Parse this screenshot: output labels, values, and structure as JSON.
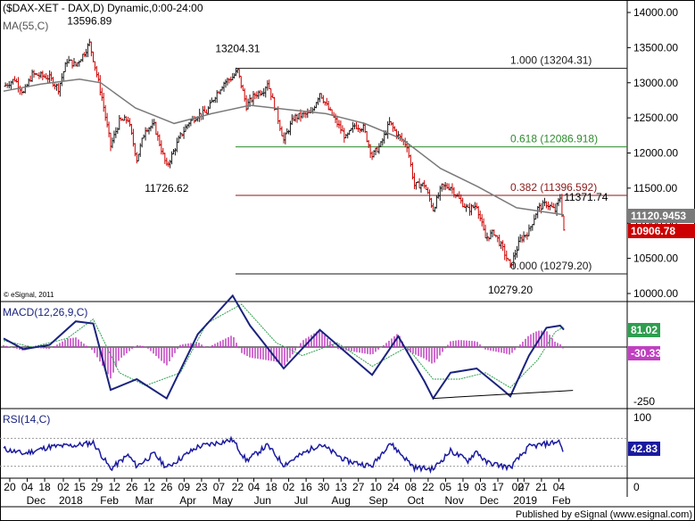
{
  "chart_data": {
    "type": "candlestick",
    "title": "($DAX-XET - DAX,D) Dynamic,0:00-24:00",
    "overlay_label": "MA(55,C)",
    "copyright": "© eSignal, 2011",
    "footer": "Published by eSignal (www.esignal.com)",
    "colors": {
      "up": "#1a1a1a",
      "down": "#cc0000",
      "ma": "#7a7a7a",
      "macd": "#1a237e",
      "signal": "#2e9e4f",
      "hist": "#c040c0",
      "rsi": "#1a1aa0",
      "fib_red": "#8b1a1a",
      "fib_green": "#2e8b2e"
    },
    "price_axis": {
      "min": 10000,
      "max": 14000,
      "ticks": [
        "14000.00",
        "13500.00",
        "13000.00",
        "12500.00",
        "12000.00",
        "11500.00",
        "11000.00",
        "10500.00",
        "10000.00"
      ]
    },
    "price_markers": [
      {
        "label": "11120.9453",
        "value": 11120.95,
        "color": "#7a7a7a"
      },
      {
        "label": "10906.78",
        "value": 10906.78,
        "color": "#cc0000"
      }
    ],
    "fib_levels": [
      {
        "label": "1.000 (13204.31)",
        "value": 13204.31,
        "color": "#1a1a1a"
      },
      {
        "label": "0.618 (12086.918)",
        "value": 12086.918,
        "color": "#2e8b2e"
      },
      {
        "label": "0.382 (11396.592)",
        "value": 11396.592,
        "color": "#8b1a1a"
      },
      {
        "label": "0.000 (10279.20)",
        "value": 10279.2,
        "color": "#1a1a1a"
      }
    ],
    "annotations": [
      {
        "text": "13596.89",
        "date": "2018-01-23",
        "value": 13596.89,
        "place": "above"
      },
      {
        "text": "13204.31",
        "date": "2018-05-22",
        "value": 13204.31,
        "place": "above"
      },
      {
        "text": "11726.62",
        "date": "2018-03-26",
        "value": 11726.62,
        "place": "below"
      },
      {
        "text": "11371.74",
        "date": "2019-02-01",
        "value": 11371.74,
        "place": "right"
      },
      {
        "text": "10279.20",
        "date": "2018-12-27",
        "value": 10279.2,
        "place": "below"
      }
    ],
    "price_series": [
      {
        "date": "2017-11-15",
        "close": 12950
      },
      {
        "date": "2017-11-24",
        "close": 13050
      },
      {
        "date": "2017-12-01",
        "close": 12850
      },
      {
        "date": "2017-12-08",
        "close": 13120
      },
      {
        "date": "2017-12-15",
        "close": 13100
      },
      {
        "date": "2017-12-22",
        "close": 13070
      },
      {
        "date": "2017-12-29",
        "close": 12917
      },
      {
        "date": "2018-01-05",
        "close": 13320
      },
      {
        "date": "2018-01-12",
        "close": 13250
      },
      {
        "date": "2018-01-19",
        "close": 13430
      },
      {
        "date": "2018-01-23",
        "close": 13560
      },
      {
        "date": "2018-01-26",
        "close": 13340
      },
      {
        "date": "2018-02-02",
        "close": 12790
      },
      {
        "date": "2018-02-09",
        "close": 12100
      },
      {
        "date": "2018-02-16",
        "close": 12450
      },
      {
        "date": "2018-02-23",
        "close": 12480
      },
      {
        "date": "2018-03-02",
        "close": 11910
      },
      {
        "date": "2018-03-09",
        "close": 12350
      },
      {
        "date": "2018-03-16",
        "close": 12390
      },
      {
        "date": "2018-03-26",
        "close": 11800
      },
      {
        "date": "2018-04-06",
        "close": 12240
      },
      {
        "date": "2018-04-13",
        "close": 12440
      },
      {
        "date": "2018-04-20",
        "close": 12540
      },
      {
        "date": "2018-04-27",
        "close": 12580
      },
      {
        "date": "2018-05-04",
        "close": 12820
      },
      {
        "date": "2018-05-11",
        "close": 13000
      },
      {
        "date": "2018-05-18",
        "close": 13080
      },
      {
        "date": "2018-05-22",
        "close": 13170
      },
      {
        "date": "2018-05-29",
        "close": 12670
      },
      {
        "date": "2018-06-05",
        "close": 12830
      },
      {
        "date": "2018-06-12",
        "close": 12900
      },
      {
        "date": "2018-06-15",
        "close": 13010
      },
      {
        "date": "2018-06-22",
        "close": 12580
      },
      {
        "date": "2018-06-28",
        "close": 12180
      },
      {
        "date": "2018-07-06",
        "close": 12500
      },
      {
        "date": "2018-07-13",
        "close": 12540
      },
      {
        "date": "2018-07-20",
        "close": 12560
      },
      {
        "date": "2018-07-27",
        "close": 12860
      },
      {
        "date": "2018-08-03",
        "close": 12620
      },
      {
        "date": "2018-08-10",
        "close": 12420
      },
      {
        "date": "2018-08-17",
        "close": 12210
      },
      {
        "date": "2018-08-24",
        "close": 12390
      },
      {
        "date": "2018-08-31",
        "close": 12360
      },
      {
        "date": "2018-09-07",
        "close": 11960
      },
      {
        "date": "2018-09-14",
        "close": 12120
      },
      {
        "date": "2018-09-21",
        "close": 12430
      },
      {
        "date": "2018-09-28",
        "close": 12240
      },
      {
        "date": "2018-10-05",
        "close": 12110
      },
      {
        "date": "2018-10-11",
        "close": 11540
      },
      {
        "date": "2018-10-19",
        "close": 11550
      },
      {
        "date": "2018-10-26",
        "close": 11200
      },
      {
        "date": "2018-11-02",
        "close": 11520
      },
      {
        "date": "2018-11-09",
        "close": 11520
      },
      {
        "date": "2018-11-16",
        "close": 11340
      },
      {
        "date": "2018-11-23",
        "close": 11190
      },
      {
        "date": "2018-11-30",
        "close": 11260
      },
      {
        "date": "2018-12-07",
        "close": 10790
      },
      {
        "date": "2018-12-14",
        "close": 10870
      },
      {
        "date": "2018-12-21",
        "close": 10630
      },
      {
        "date": "2018-12-27",
        "close": 10380
      },
      {
        "date": "2019-01-04",
        "close": 10770
      },
      {
        "date": "2019-01-11",
        "close": 10890
      },
      {
        "date": "2019-01-18",
        "close": 11210
      },
      {
        "date": "2019-01-25",
        "close": 11280
      },
      {
        "date": "2019-02-01",
        "close": 11180
      },
      {
        "date": "2019-02-05",
        "close": 11370
      },
      {
        "date": "2019-02-08",
        "close": 10906.78
      }
    ],
    "ma_series": [
      {
        "date": "2017-11-15",
        "value": 12880
      },
      {
        "date": "2017-12-15",
        "value": 12980
      },
      {
        "date": "2018-01-15",
        "value": 13050
      },
      {
        "date": "2018-02-01",
        "value": 13000
      },
      {
        "date": "2018-03-01",
        "value": 12640
      },
      {
        "date": "2018-04-01",
        "value": 12420
      },
      {
        "date": "2018-05-01",
        "value": 12560
      },
      {
        "date": "2018-06-01",
        "value": 12680
      },
      {
        "date": "2018-07-01",
        "value": 12620
      },
      {
        "date": "2018-08-01",
        "value": 12560
      },
      {
        "date": "2018-09-01",
        "value": 12420
      },
      {
        "date": "2018-10-01",
        "value": 12200
      },
      {
        "date": "2018-11-01",
        "value": 11780
      },
      {
        "date": "2018-12-01",
        "value": 11520
      },
      {
        "date": "2019-01-01",
        "value": 11220
      },
      {
        "date": "2019-02-08",
        "value": 11121
      }
    ],
    "macd": {
      "label": "MACD(12,26,9,C)",
      "ticks": [
        "-250"
      ],
      "markers": [
        {
          "label": "81.02",
          "value": 81.02,
          "color": "#2e9e4f"
        },
        {
          "label": "-30.33",
          "value": -30.33,
          "color": "#c040c0"
        }
      ],
      "macd_series": [
        {
          "date": "2017-11-15",
          "value": 40
        },
        {
          "date": "2017-12-01",
          "value": -10
        },
        {
          "date": "2017-12-22",
          "value": 10
        },
        {
          "date": "2018-01-12",
          "value": 120
        },
        {
          "date": "2018-01-26",
          "value": 110
        },
        {
          "date": "2018-02-09",
          "value": -200
        },
        {
          "date": "2018-03-02",
          "value": -150
        },
        {
          "date": "2018-03-26",
          "value": -240
        },
        {
          "date": "2018-04-20",
          "value": 60
        },
        {
          "date": "2018-05-18",
          "value": 240
        },
        {
          "date": "2018-06-01",
          "value": 100
        },
        {
          "date": "2018-06-28",
          "value": -100
        },
        {
          "date": "2018-07-27",
          "value": 80
        },
        {
          "date": "2018-08-24",
          "value": -60
        },
        {
          "date": "2018-09-07",
          "value": -130
        },
        {
          "date": "2018-09-28",
          "value": 50
        },
        {
          "date": "2018-10-19",
          "value": -160
        },
        {
          "date": "2018-10-26",
          "value": -240
        },
        {
          "date": "2018-11-09",
          "value": -120
        },
        {
          "date": "2018-11-30",
          "value": -100
        },
        {
          "date": "2018-12-21",
          "value": -200
        },
        {
          "date": "2018-12-27",
          "value": -230
        },
        {
          "date": "2019-01-11",
          "value": -40
        },
        {
          "date": "2019-01-25",
          "value": 90
        },
        {
          "date": "2019-02-05",
          "value": 100
        },
        {
          "date": "2019-02-08",
          "value": 81
        }
      ],
      "signal_series": [
        {
          "date": "2017-11-15",
          "value": 30
        },
        {
          "date": "2017-12-08",
          "value": 0
        },
        {
          "date": "2018-01-05",
          "value": 40
        },
        {
          "date": "2018-01-26",
          "value": 130
        },
        {
          "date": "2018-02-16",
          "value": -120
        },
        {
          "date": "2018-03-09",
          "value": -180
        },
        {
          "date": "2018-04-06",
          "value": -120
        },
        {
          "date": "2018-04-27",
          "value": 110
        },
        {
          "date": "2018-05-25",
          "value": 200
        },
        {
          "date": "2018-06-22",
          "value": 20
        },
        {
          "date": "2018-07-13",
          "value": -40
        },
        {
          "date": "2018-08-10",
          "value": 20
        },
        {
          "date": "2018-09-07",
          "value": -90
        },
        {
          "date": "2018-10-05",
          "value": 0
        },
        {
          "date": "2018-10-26",
          "value": -150
        },
        {
          "date": "2018-11-16",
          "value": -150
        },
        {
          "date": "2018-12-07",
          "value": -120
        },
        {
          "date": "2018-12-27",
          "value": -190
        },
        {
          "date": "2019-01-18",
          "value": -60
        },
        {
          "date": "2019-02-01",
          "value": 70
        },
        {
          "date": "2019-02-08",
          "value": 95
        }
      ],
      "divergence_line": [
        {
          "date": "2018-10-26",
          "value": -240
        },
        {
          "date": "2019-02-01",
          "value": -190
        }
      ]
    },
    "rsi": {
      "label": "RSI(14,C)",
      "ticks": [
        "100",
        "50",
        "0"
      ],
      "levels": [
        70,
        30
      ],
      "marker": {
        "label": "42.83",
        "value": 42.83
      },
      "series": [
        {
          "date": "2017-11-15",
          "value": 55
        },
        {
          "date": "2017-12-01",
          "value": 48
        },
        {
          "date": "2017-12-22",
          "value": 58
        },
        {
          "date": "2018-01-12",
          "value": 60
        },
        {
          "date": "2018-01-26",
          "value": 64
        },
        {
          "date": "2018-02-09",
          "value": 26
        },
        {
          "date": "2018-02-23",
          "value": 46
        },
        {
          "date": "2018-03-02",
          "value": 30
        },
        {
          "date": "2018-03-16",
          "value": 48
        },
        {
          "date": "2018-03-26",
          "value": 28
        },
        {
          "date": "2018-04-20",
          "value": 58
        },
        {
          "date": "2018-05-18",
          "value": 68
        },
        {
          "date": "2018-05-29",
          "value": 38
        },
        {
          "date": "2018-06-15",
          "value": 60
        },
        {
          "date": "2018-06-28",
          "value": 32
        },
        {
          "date": "2018-07-27",
          "value": 62
        },
        {
          "date": "2018-08-17",
          "value": 38
        },
        {
          "date": "2018-09-07",
          "value": 30
        },
        {
          "date": "2018-09-21",
          "value": 64
        },
        {
          "date": "2018-10-11",
          "value": 28
        },
        {
          "date": "2018-10-26",
          "value": 26
        },
        {
          "date": "2018-11-09",
          "value": 52
        },
        {
          "date": "2018-11-23",
          "value": 38
        },
        {
          "date": "2018-11-30",
          "value": 52
        },
        {
          "date": "2018-12-07",
          "value": 36
        },
        {
          "date": "2018-12-27",
          "value": 28
        },
        {
          "date": "2019-01-11",
          "value": 58
        },
        {
          "date": "2019-01-25",
          "value": 62
        },
        {
          "date": "2019-02-05",
          "value": 66
        },
        {
          "date": "2019-02-08",
          "value": 43
        }
      ]
    },
    "time_axis": {
      "day_ticks": [
        {
          "label": "20",
          "date": "2017-11-20"
        },
        {
          "label": "04",
          "date": "2017-12-04"
        },
        {
          "label": "18",
          "date": "2017-12-18"
        },
        {
          "label": "02",
          "date": "2018-01-02"
        },
        {
          "label": "15",
          "date": "2018-01-15"
        },
        {
          "label": "29",
          "date": "2018-01-29"
        },
        {
          "label": "12",
          "date": "2018-02-12"
        },
        {
          "label": "26",
          "date": "2018-02-26"
        },
        {
          "label": "12",
          "date": "2018-03-12"
        },
        {
          "label": "26",
          "date": "2018-03-26"
        },
        {
          "label": "09",
          "date": "2018-04-09"
        },
        {
          "label": "23",
          "date": "2018-04-23"
        },
        {
          "label": "07",
          "date": "2018-05-07"
        },
        {
          "label": "22",
          "date": "2018-05-22"
        },
        {
          "label": "04",
          "date": "2018-06-04"
        },
        {
          "label": "18",
          "date": "2018-06-18"
        },
        {
          "label": "02",
          "date": "2018-07-02"
        },
        {
          "label": "16",
          "date": "2018-07-16"
        },
        {
          "label": "30",
          "date": "2018-07-30"
        },
        {
          "label": "13",
          "date": "2018-08-13"
        },
        {
          "label": "27",
          "date": "2018-08-27"
        },
        {
          "label": "10",
          "date": "2018-09-10"
        },
        {
          "label": "24",
          "date": "2018-09-24"
        },
        {
          "label": "08",
          "date": "2018-10-08"
        },
        {
          "label": "22",
          "date": "2018-10-22"
        },
        {
          "label": "05",
          "date": "2018-11-05"
        },
        {
          "label": "19",
          "date": "2018-11-19"
        },
        {
          "label": "03",
          "date": "2018-12-03"
        },
        {
          "label": "17",
          "date": "2018-12-17"
        },
        {
          "label": "02",
          "date": "2019-01-02"
        },
        {
          "label": "07",
          "date": "2019-01-07"
        },
        {
          "label": "21",
          "date": "2019-01-21"
        },
        {
          "label": "04",
          "date": "2019-02-04"
        }
      ],
      "month_ticks": [
        {
          "label": "Dec",
          "date": "2017-12-11"
        },
        {
          "label": "2018",
          "date": "2018-01-08"
        },
        {
          "label": "Feb",
          "date": "2018-02-08"
        },
        {
          "label": "Mar",
          "date": "2018-03-08"
        },
        {
          "label": "Apr",
          "date": "2018-04-12"
        },
        {
          "label": "May",
          "date": "2018-05-10"
        },
        {
          "label": "Jun",
          "date": "2018-06-11"
        },
        {
          "label": "Jul",
          "date": "2018-07-12"
        },
        {
          "label": "Aug",
          "date": "2018-08-13"
        },
        {
          "label": "Sep",
          "date": "2018-09-12"
        },
        {
          "label": "Oct",
          "date": "2018-10-12"
        },
        {
          "label": "Nov",
          "date": "2018-11-12"
        },
        {
          "label": "Dec",
          "date": "2018-12-10"
        },
        {
          "label": "2019",
          "date": "2019-01-08"
        },
        {
          "label": "Feb",
          "date": "2019-02-06"
        }
      ]
    }
  }
}
